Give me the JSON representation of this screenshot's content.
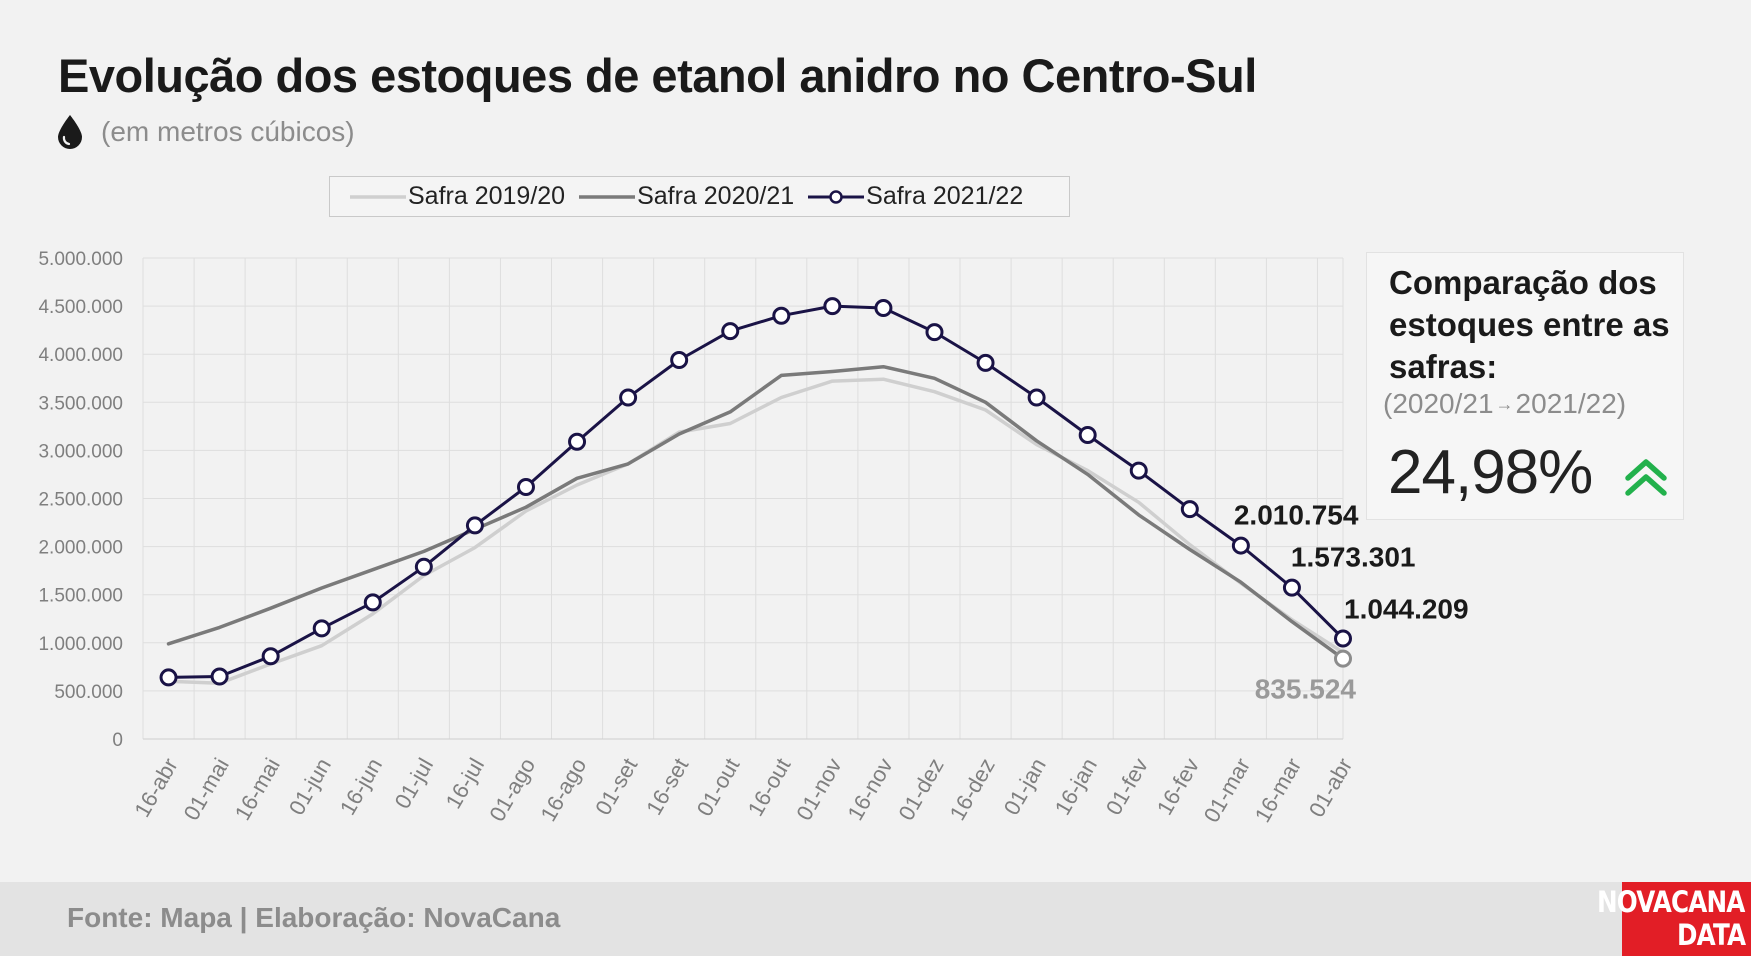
{
  "title": "Evolução dos estoques de etanol anidro no Centro-Sul",
  "subtitle": "(em metros cúbicos)",
  "subtitle_icon": "drop-icon",
  "chart_data": {
    "type": "line",
    "x": [
      "16-abr",
      "01-mai",
      "16-mai",
      "01-jun",
      "16-jun",
      "01-jul",
      "16-jul",
      "01-ago",
      "16-ago",
      "01-set",
      "16-set",
      "01-out",
      "16-out",
      "01-nov",
      "16-nov",
      "01-dez",
      "16-dez",
      "01-jan",
      "16-jan",
      "01-fev",
      "16-fev",
      "01-mar",
      "16-mar",
      "01-abr"
    ],
    "series": [
      {
        "name": "Safra 2019/20",
        "color": "#cfcfcf",
        "markers": false,
        "values": [
          600000,
          580000,
          780000,
          970000,
          1300000,
          1700000,
          1990000,
          2370000,
          2640000,
          2860000,
          3190000,
          3280000,
          3550000,
          3720000,
          3740000,
          3610000,
          3420000,
          3060000,
          2790000,
          2460000,
          2020000,
          1620000,
          1240000,
          900000
        ]
      },
      {
        "name": "Safra 2020/21",
        "color": "#7a7a7a",
        "markers": false,
        "values": [
          990000,
          1160000,
          1360000,
          1570000,
          1760000,
          1950000,
          2180000,
          2410000,
          2710000,
          2860000,
          3170000,
          3400000,
          3780000,
          3820000,
          3870000,
          3750000,
          3500000,
          3100000,
          2750000,
          2330000,
          1970000,
          1630000,
          1220000,
          835524
        ]
      },
      {
        "name": "Safra 2021/22",
        "color": "#1a1346",
        "markers": true,
        "values": [
          640000,
          650000,
          860000,
          1150000,
          1420000,
          1790000,
          2220000,
          2620000,
          3090000,
          3550000,
          3940000,
          4240000,
          4400000,
          4500000,
          4480000,
          4230000,
          3910000,
          3550000,
          3160000,
          2790000,
          2390000,
          2010754,
          1573301,
          1044209
        ]
      }
    ],
    "ylim": [
      0,
      5000000
    ],
    "y_ticks": [
      0,
      500000,
      1000000,
      1500000,
      2000000,
      2500000,
      3000000,
      3500000,
      4000000,
      4500000,
      5000000
    ],
    "y_tick_labels": [
      "0",
      "500.000",
      "1.000.000",
      "1.500.000",
      "2.000.000",
      "2.500.000",
      "3.000.000",
      "3.500.000",
      "4.000.000",
      "4.500.000",
      "5.000.000"
    ],
    "grid": true,
    "legend_position": "top",
    "annotations": [
      {
        "text": "2.010.754",
        "series": 2,
        "index": 21,
        "color": "#1a1a1a"
      },
      {
        "text": "1.573.301",
        "series": 2,
        "index": 22,
        "color": "#1a1a1a"
      },
      {
        "text": "1.044.209",
        "series": 2,
        "index": 23,
        "color": "#1a1a1a"
      },
      {
        "text": "835.524",
        "series": 1,
        "index": 23,
        "color": "#9a9a9a"
      }
    ]
  },
  "comparison": {
    "title": "Comparação dos estoques entre as safras:",
    "period_from": "(2020/21",
    "period_arrow": "→",
    "period_to": "2021/22)",
    "value": "24,98%",
    "trend_icon": "double-chevron-up-icon",
    "trend_color": "#22b14c"
  },
  "footer": {
    "source": "Fonte: Mapa | Elaboração: NovaCana"
  },
  "logo": {
    "line1": "NOVACANA",
    "line2": "DATA",
    "color": "#e21e26"
  }
}
